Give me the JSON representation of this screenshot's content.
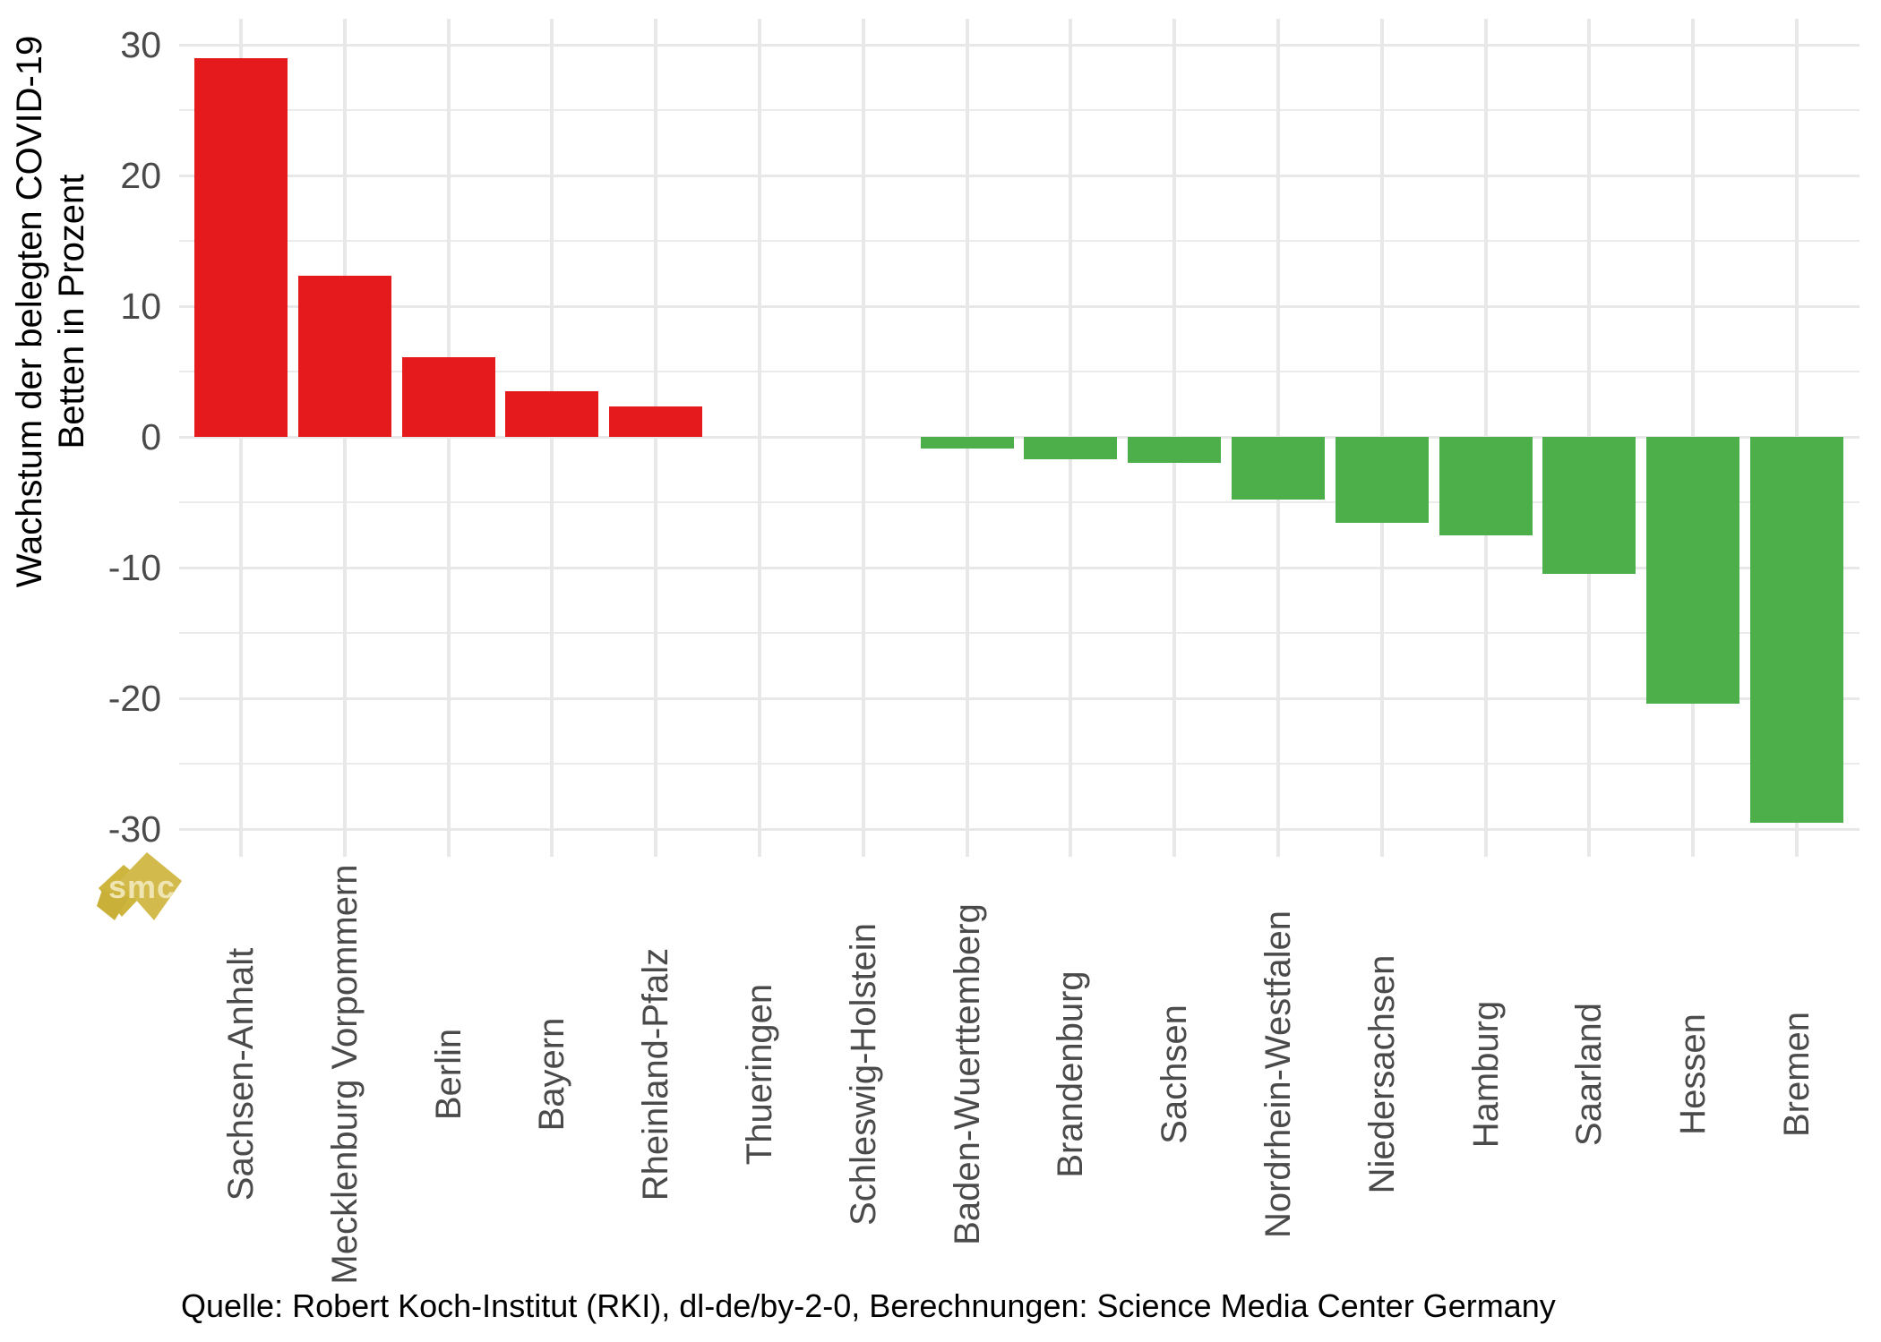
{
  "chart_data": {
    "type": "bar",
    "title": "",
    "xlabel": "",
    "ylabel": "Wachstum der belegten COVID-19 Betten in Prozent",
    "ylabel_lines": [
      "Wachstum der belegten COVID-19",
      "Betten in Prozent"
    ],
    "categories": [
      "Sachsen-Anhalt",
      "Mecklenburg Vorpommern",
      "Berlin",
      "Bayern",
      "Rheinland-Pfalz",
      "Thueringen",
      "Schleswig-Holstein",
      "Baden-Wuerttemberg",
      "Brandenburg",
      "Sachsen",
      "Nordrhein-Westfalen",
      "Niedersachsen",
      "Hamburg",
      "Saarland",
      "Hessen",
      "Bremen"
    ],
    "values": [
      29.0,
      12.3,
      6.1,
      3.5,
      2.3,
      0.0,
      0.0,
      -0.9,
      -1.7,
      -2.0,
      -4.8,
      -6.6,
      -7.5,
      -10.5,
      -20.4,
      -29.5
    ],
    "yticks": [
      30,
      20,
      10,
      0,
      -10,
      -20,
      -30
    ],
    "yticks_minor": [
      25,
      15,
      5,
      -5,
      -15,
      -25
    ],
    "ylim": [
      -32,
      32
    ],
    "grid": "horizontal major+minor, vertical major at category centers",
    "legend": "none",
    "colors": {
      "positive": "#E41A1C",
      "negative": "#4DAF4A",
      "grid": "#E8E8E8",
      "axis_text": "#4A4A4A",
      "axis_title": "#000000"
    },
    "bar_color_rule": "positive values red, negative values green"
  },
  "caption": "Quelle: Robert Koch-Institut (RKI), dl-de/by-2-0, Berechnungen: Science Media Center Germany",
  "watermark": {
    "text": "smc",
    "color": "#CFB640"
  }
}
